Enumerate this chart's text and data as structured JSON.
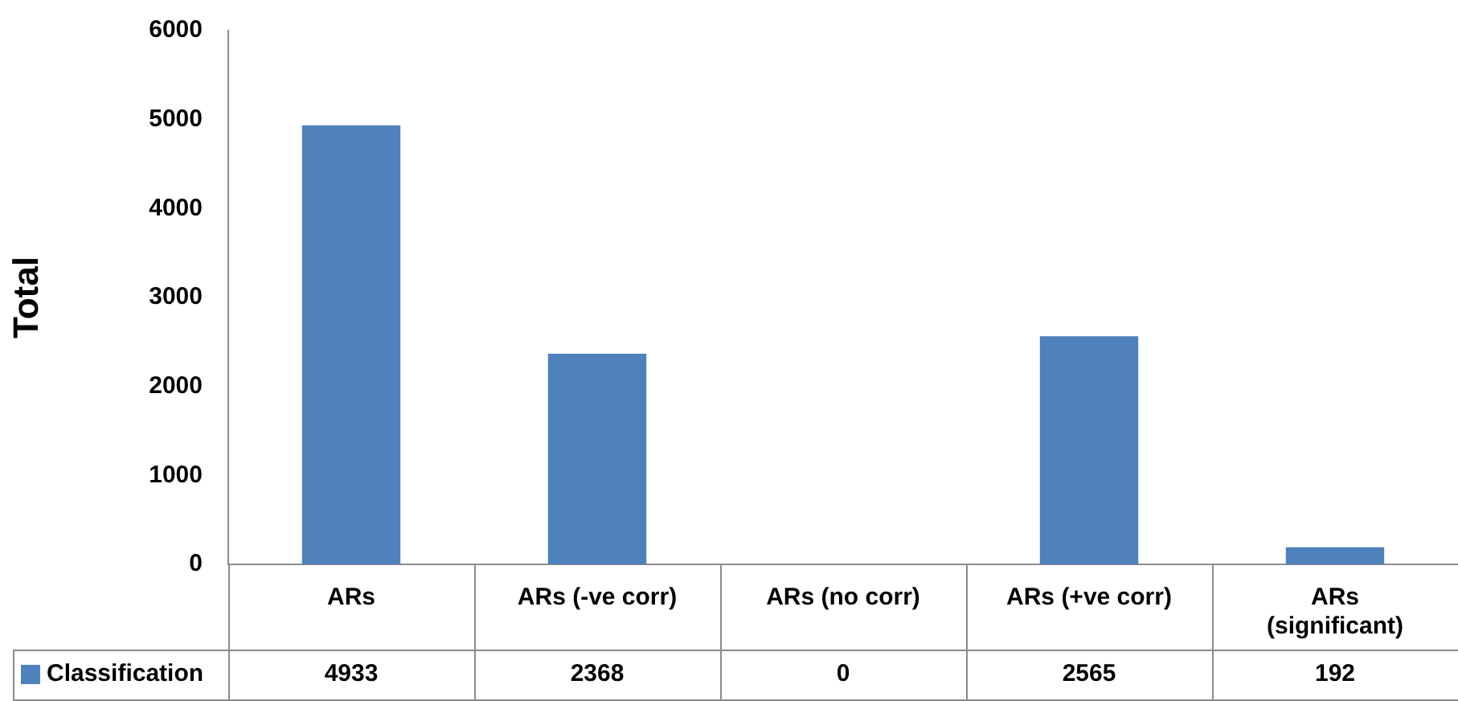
{
  "chart_data": {
    "type": "bar",
    "ylabel": "Total",
    "categories": [
      "ARs",
      "ARs (-ve corr)",
      "ARs (no corr)",
      "ARs (+ve corr)",
      "ARs (significant)"
    ],
    "series": [
      {
        "name": "Classification",
        "color": "#4f81bd",
        "values": [
          4933,
          2368,
          0,
          2565,
          192
        ]
      }
    ],
    "ylim": [
      0,
      6000
    ],
    "yticks": [
      0,
      1000,
      2000,
      3000,
      4000,
      5000,
      6000
    ],
    "grid": false,
    "legend": "bottom left",
    "data_labels": true
  }
}
